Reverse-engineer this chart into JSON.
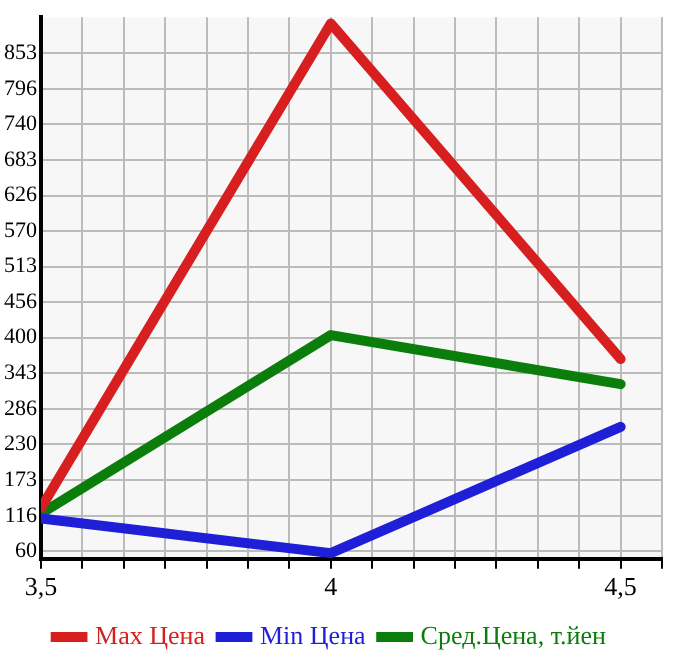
{
  "chart_data": {
    "type": "line",
    "x": [
      3.5,
      4,
      4.5
    ],
    "series": [
      {
        "name": "Max Цена",
        "color": "#d71f1f",
        "values": [
          129,
          900,
          366
        ]
      },
      {
        "name": "Min Цена",
        "color": "#1f1fd7",
        "values": [
          112,
          57,
          258
        ]
      },
      {
        "name": "Сред.Цена, т.йен",
        "color": "#0a7d0a",
        "values": [
          120,
          404,
          326
        ]
      }
    ],
    "xlim": [
      3.5,
      4.5714
    ],
    "xticks": [
      {
        "value": 3.5,
        "label": "3,5"
      },
      {
        "value": 3.5714,
        "label": null
      },
      {
        "value": 3.6429,
        "label": null
      },
      {
        "value": 3.7143,
        "label": null
      },
      {
        "value": 3.7857,
        "label": null
      },
      {
        "value": 3.8571,
        "label": null
      },
      {
        "value": 3.9286,
        "label": null
      },
      {
        "value": 4,
        "label": "4"
      },
      {
        "value": 4.0714,
        "label": null
      },
      {
        "value": 4.1429,
        "label": null
      },
      {
        "value": 4.2143,
        "label": null
      },
      {
        "value": 4.2857,
        "label": null
      },
      {
        "value": 4.3571,
        "label": null
      },
      {
        "value": 4.4286,
        "label": null
      },
      {
        "value": 4.5,
        "label": "4,5"
      },
      {
        "value": 4.5714,
        "label": null
      }
    ],
    "ylim": [
      48,
      910
    ],
    "yticks": [
      60,
      116,
      173,
      230,
      286,
      343,
      400,
      456,
      513,
      570,
      626,
      683,
      740,
      796,
      853
    ],
    "grid": true,
    "legend": "bottom",
    "marker": "none",
    "line_style": "solid"
  }
}
